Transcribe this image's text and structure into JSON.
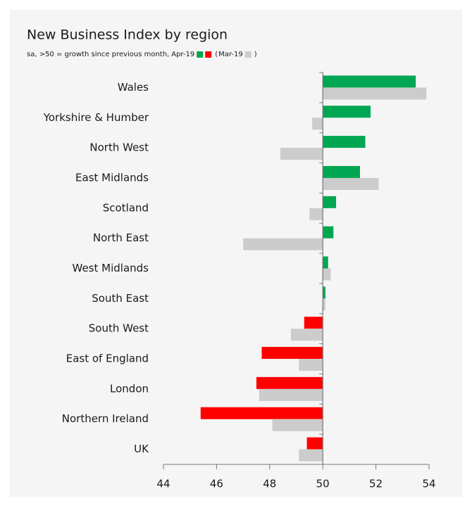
{
  "chart_data": {
    "type": "hbar",
    "title": "New Business Index by region",
    "subtitle": "sa, >50 = growth since previous month,",
    "legend_wrap": [
      "(",
      ")"
    ],
    "categories": [
      "Wales",
      "Yorkshire & Humber",
      "North West",
      "East Midlands",
      "Scotland",
      "North East",
      "West Midlands",
      "South East",
      "South West",
      "East of England",
      "London",
      "Northern Ireland",
      "UK"
    ],
    "baseline": 50,
    "series": [
      {
        "name": "Apr-19",
        "color": "#00a651",
        "negative_color": "#ff0000",
        "values": [
          53.5,
          51.8,
          51.6,
          51.4,
          50.5,
          50.4,
          50.2,
          50.1,
          49.3,
          47.7,
          47.5,
          45.4,
          49.4
        ]
      },
      {
        "name": "Mar-19",
        "color": "#cccccc",
        "values": [
          53.9,
          49.6,
          48.4,
          52.1,
          49.5,
          47.0,
          50.3,
          50.1,
          48.8,
          49.1,
          47.6,
          48.1,
          49.1
        ]
      }
    ],
    "xlim": [
      44,
      54
    ],
    "xticks": [
      44,
      46,
      48,
      50,
      52,
      54
    ]
  }
}
